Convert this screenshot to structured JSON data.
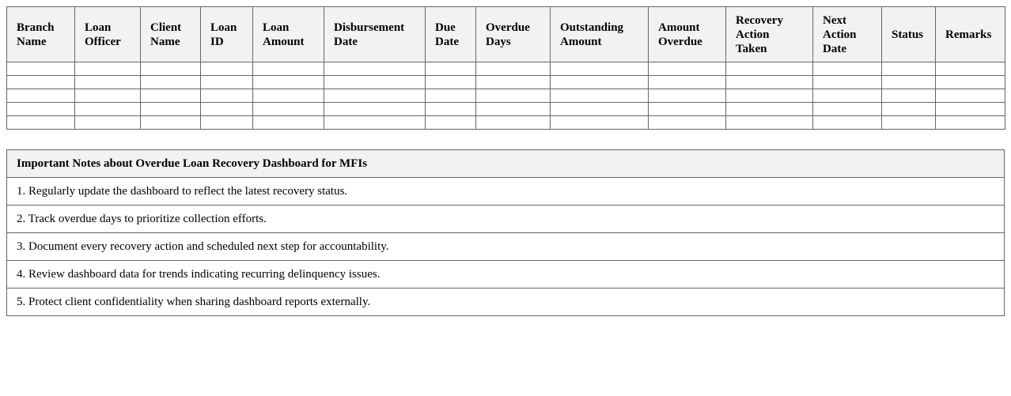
{
  "table": {
    "headers": [
      "Branch Name",
      "Loan Officer",
      "Client Name",
      "Loan ID",
      "Loan Amount",
      "Disbursement Date",
      "Due Date",
      "Overdue Days",
      "Outstanding Amount",
      "Amount Overdue",
      "Recovery Action Taken",
      "Next Action Date",
      "Status",
      "Remarks"
    ]
  },
  "notes": {
    "title": "Important Notes about Overdue Loan Recovery Dashboard for MFIs",
    "items": [
      "1. Regularly update the dashboard to reflect the latest recovery status.",
      "2. Track overdue days to prioritize collection efforts.",
      "3. Document every recovery action and scheduled next step for accountability.",
      "4. Review dashboard data for trends indicating recurring delinquency issues.",
      "5. Protect client confidentiality when sharing dashboard reports externally."
    ]
  }
}
